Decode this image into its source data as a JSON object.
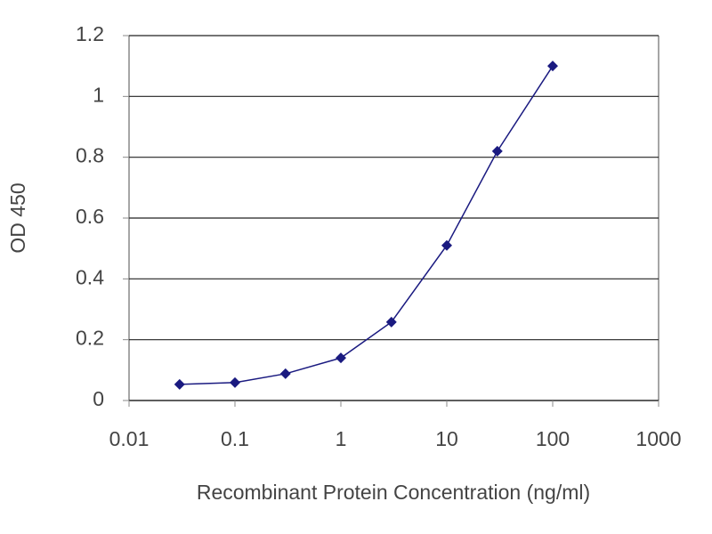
{
  "chart_data": {
    "type": "line",
    "x_label": "Recombinant Protein Concentration (ng/ml)",
    "y_label": "OD 450",
    "x": [
      0.03,
      0.1,
      0.3,
      1,
      3,
      10,
      30,
      100
    ],
    "series": [
      {
        "color": "#1a1a80",
        "values": [
          0.053,
          0.059,
          0.088,
          0.14,
          0.258,
          0.51,
          0.82,
          1.1
        ]
      }
    ],
    "xlim": [
      0.01,
      1000
    ],
    "xticks": [
      0.01,
      0.1,
      1,
      10,
      100,
      1000
    ],
    "xscale": "log",
    "ylim": [
      0,
      1.2
    ],
    "yticks": [
      0,
      0.2,
      0.4,
      0.6,
      0.8,
      1,
      1.2
    ],
    "grid": true
  }
}
